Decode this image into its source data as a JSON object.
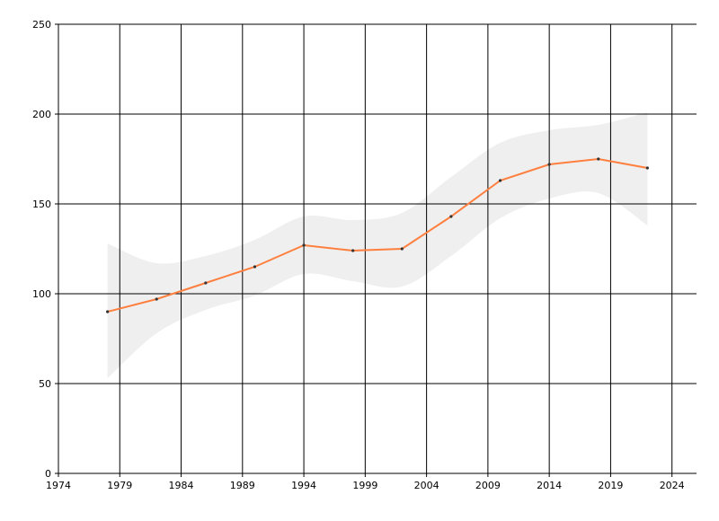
{
  "chart_data": {
    "type": "line",
    "title": "",
    "xlabel": "",
    "ylabel": "",
    "xlim": [
      1974,
      2026
    ],
    "ylim": [
      0,
      250
    ],
    "x_ticks": [
      1974,
      1979,
      1984,
      1989,
      1994,
      1999,
      2004,
      2009,
      2014,
      2019,
      2024
    ],
    "y_ticks": [
      0,
      50,
      100,
      150,
      200,
      250
    ],
    "grid": true,
    "series": [
      {
        "x": [
          1978,
          1982,
          1986,
          1990,
          1994,
          1998,
          2002,
          2006,
          2010,
          2014,
          2018,
          2022
        ],
        "values": [
          90,
          97,
          106,
          115,
          127,
          124,
          125,
          143,
          163,
          172,
          175,
          170
        ]
      }
    ],
    "confidence_band": {
      "x": [
        1978,
        1982,
        1986,
        1990,
        1994,
        1998,
        2002,
        2006,
        2010,
        2014,
        2018,
        2022
      ],
      "upper": [
        128,
        117,
        121,
        130,
        143,
        141,
        145,
        165,
        184,
        191,
        194,
        201
      ],
      "lower": [
        53,
        78,
        91,
        99,
        111,
        107,
        104,
        121,
        142,
        153,
        156,
        138
      ]
    },
    "colors": {
      "line": "#ff7f3f",
      "band": "#efefef",
      "grid": "#000000",
      "marker": "#333333"
    }
  }
}
